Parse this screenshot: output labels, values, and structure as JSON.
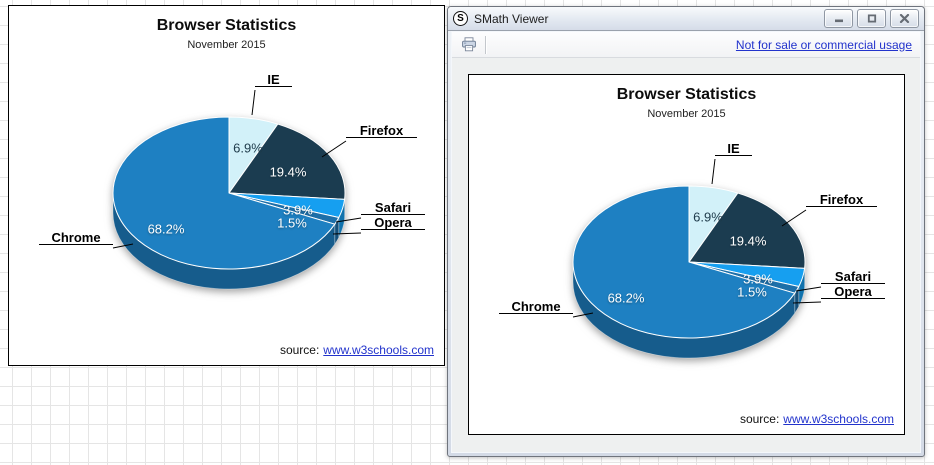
{
  "window": {
    "title": "SMath Viewer",
    "logo_letter": "S",
    "controls": {
      "minimize": "minimize",
      "maximize": "maximize",
      "close": "close"
    },
    "toolbar": {
      "print_icon": "printer-icon",
      "license_link": "Not for sale or commercial usage"
    }
  },
  "chart_data": {
    "type": "pie",
    "style": "3d",
    "title": "Browser Statistics",
    "subtitle": "November 2015",
    "start_angle_deg": 0,
    "direction": "clockwise",
    "legend": false,
    "series": [
      {
        "name": "IE",
        "value": 6.9,
        "label": "6.9%",
        "color": "#d2f1f9"
      },
      {
        "name": "Firefox",
        "value": 19.4,
        "label": "19.4%",
        "color": "#1b3c50"
      },
      {
        "name": "Safari",
        "value": 3.9,
        "label": "3.9%",
        "color": "#169ff0"
      },
      {
        "name": "Opera",
        "value": 1.5,
        "label": "1.5%",
        "color": "#1d6fa9"
      },
      {
        "name": "Chrome",
        "value": 68.2,
        "label": "68.2%",
        "color": "#1e80c2"
      }
    ],
    "source_label": "source:",
    "source_link": "www.w3schools.com",
    "link_color": "#2233cc"
  }
}
